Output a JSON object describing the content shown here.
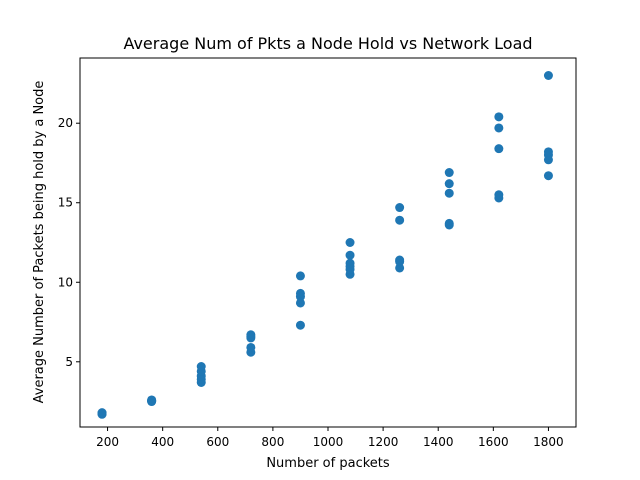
{
  "chart_data": {
    "type": "scatter",
    "title": "Average Num of Pkts a Node Hold vs Network Load",
    "xlabel": "Number of packets",
    "ylabel": "Average Number of Packets being hold by a Node",
    "xlim": [
      100,
      1900
    ],
    "ylim": [
      0.9,
      24.1
    ],
    "x_ticks": [
      200,
      400,
      600,
      800,
      1000,
      1200,
      1400,
      1600,
      1800
    ],
    "y_ticks": [
      5,
      10,
      15,
      20
    ],
    "grid": false,
    "marker_color": "#1f77b4",
    "series": [
      {
        "x": [
          180,
          180,
          180,
          180,
          180,
          360,
          360,
          360,
          360,
          360,
          540,
          540,
          540,
          540,
          540,
          720,
          720,
          720,
          720,
          720,
          900,
          900,
          900,
          900,
          900,
          1080,
          1080,
          1080,
          1080,
          1080,
          1080,
          1260,
          1260,
          1260,
          1260,
          1260,
          1440,
          1440,
          1440,
          1440,
          1440,
          1620,
          1620,
          1620,
          1620,
          1620,
          1800,
          1800,
          1800,
          1800,
          1800
        ],
        "y": [
          1.7,
          1.75,
          1.8,
          1.72,
          1.78,
          2.5,
          2.55,
          2.6,
          2.52,
          2.58,
          3.7,
          3.9,
          4.1,
          4.4,
          4.7,
          5.6,
          5.9,
          6.5,
          6.6,
          6.7,
          7.3,
          8.7,
          9.1,
          9.3,
          10.4,
          10.5,
          10.8,
          11.0,
          11.2,
          11.7,
          12.5,
          10.9,
          11.3,
          11.4,
          13.9,
          14.7,
          13.6,
          13.7,
          15.6,
          16.2,
          16.9,
          15.3,
          15.5,
          18.4,
          19.7,
          20.4,
          16.7,
          17.7,
          18.0,
          18.2,
          23.0
        ]
      }
    ]
  }
}
